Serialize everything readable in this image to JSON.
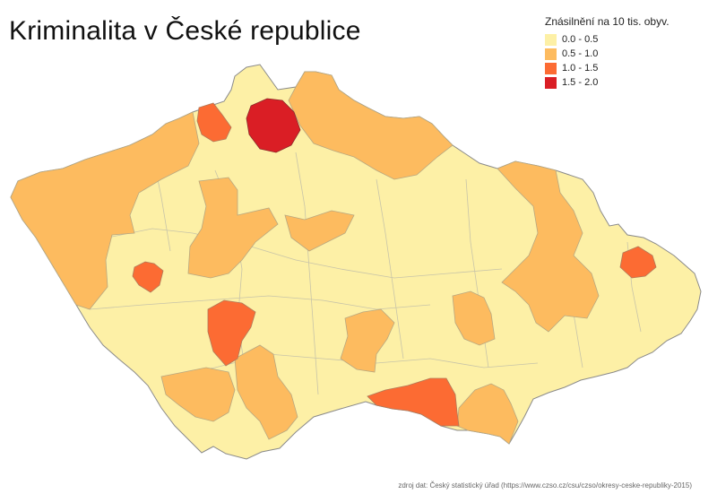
{
  "title": "Kriminalita v České republice",
  "legend": {
    "title": "Znásilnění na 10 tis. obyv.",
    "items": [
      {
        "label": "0.0 - 0.5",
        "color": "#fdf0a6"
      },
      {
        "label": "0.5 - 1.0",
        "color": "#fdbb5f"
      },
      {
        "label": "1.0 - 1.5",
        "color": "#fc6b33"
      },
      {
        "label": "1.5 - 2.0",
        "color": "#da1e25"
      }
    ]
  },
  "districts": {
    "liberec": {
      "class": "1.5 - 2.0"
    },
    "decin": {
      "class": "1.0 - 1.5"
    },
    "plzen_mesto": {
      "class": "1.0 - 1.5"
    },
    "pisek": {
      "class": "1.0 - 1.5"
    },
    "znojmo": {
      "class": "1.0 - 1.5"
    },
    "ostrava": {
      "class": "1.0 - 1.5"
    }
  },
  "source": "zdroj dat: Český statistický úřad (https://www.czso.cz/csu/czso/okresy-ceske-republiky-2015)"
}
